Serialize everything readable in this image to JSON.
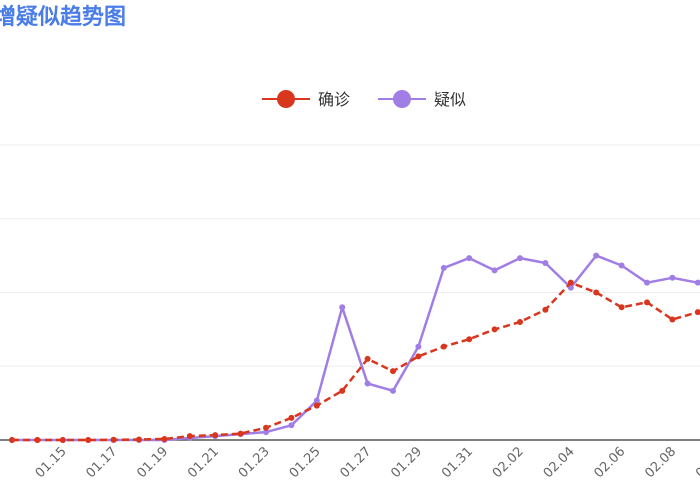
{
  "colors": {
    "title": "#4a7de8",
    "confirmed": "#d9361e",
    "suspected": "#a07ee6",
    "grid": "#eeeeee",
    "axis": "#555555"
  },
  "chart_data": {
    "type": "line",
    "title": "增疑似趋势图",
    "categories": [
      "01.13",
      "01.14",
      "01.15",
      "01.16",
      "01.17",
      "01.18",
      "01.19",
      "01.20",
      "01.21",
      "01.22",
      "01.23",
      "01.24",
      "01.25",
      "01.26",
      "01.27",
      "01.28",
      "01.29",
      "01.30",
      "01.31",
      "02.01",
      "02.02",
      "02.03",
      "02.04",
      "02.05",
      "02.06",
      "02.07",
      "02.08",
      "02.09",
      "02.10",
      "02.11"
    ],
    "x_tick_labels": [
      "01.15",
      "01.17",
      "01.19",
      "01.21",
      "01.23",
      "01.25",
      "01.27",
      "01.29",
      "01.31",
      "02.02",
      "02.04",
      "02.06",
      "02.08",
      "02.10"
    ],
    "ylim": [
      0,
      6000
    ],
    "grid": true,
    "legend_position": "top-center",
    "series": [
      {
        "name": "确诊",
        "color_key": "confirmed",
        "values": [
          0,
          0,
          0,
          0,
          5,
          10,
          20,
          80,
          100,
          130,
          250,
          450,
          700,
          1000,
          1650,
          1400,
          1700,
          1900,
          2050,
          2250,
          2400,
          2650,
          3200,
          3000,
          2700,
          2800,
          2450,
          2600,
          2350,
          2050
        ]
      },
      {
        "name": "疑似",
        "color_key": "suspected",
        "values": [
          0,
          0,
          0,
          0,
          0,
          0,
          0,
          40,
          80,
          120,
          160,
          300,
          800,
          2700,
          1150,
          1000,
          1900,
          3500,
          3700,
          3450,
          3700,
          3600,
          3100,
          3750,
          3550,
          3200,
          3300,
          3200,
          2950,
          2850
        ]
      }
    ]
  }
}
